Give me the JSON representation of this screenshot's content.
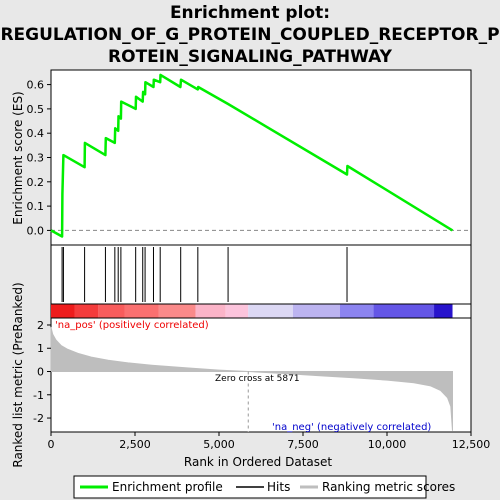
{
  "chart_data": {
    "type": "line",
    "title": "Enrichment plot: REGULATION_OF_G_PROTEIN_COUPLED_RECEPTOR_PROTEIN_SIGNALING_PATHWAY",
    "title_lines": [
      "Enrichment plot:",
      "REGULATION_OF_G_PROTEIN_COUPLED_RECEPTOR_P",
      "ROTEIN_SIGNALING_PATHWAY"
    ],
    "xlabel": "Rank in Ordered Dataset",
    "xlim": [
      0,
      12500
    ],
    "x_ticks": [
      0,
      2500,
      5000,
      7500,
      10000,
      12500
    ],
    "x_tick_labels": [
      "0",
      "2,500",
      "5,000",
      "7,500",
      "10,000",
      "12,500"
    ],
    "es_panel": {
      "ylabel": "Enrichment score (ES)",
      "ylim": [
        -0.06,
        0.66
      ],
      "y_ticks": [
        0.0,
        0.1,
        0.2,
        0.3,
        0.4,
        0.5,
        0.6
      ],
      "y_tick_labels": [
        "0.0",
        "0.1",
        "0.2",
        "0.3",
        "0.4",
        "0.5",
        "0.6"
      ],
      "series": [
        {
          "name": "Enrichment profile",
          "color": "#00ee00",
          "points": [
            [
              0,
              0.0
            ],
            [
              330,
              -0.025
            ],
            [
              340,
              0.15
            ],
            [
              370,
              0.31
            ],
            [
              1000,
              0.26
            ],
            [
              1010,
              0.36
            ],
            [
              1620,
              0.31
            ],
            [
              1630,
              0.38
            ],
            [
              1900,
              0.36
            ],
            [
              1910,
              0.42
            ],
            [
              2000,
              0.41
            ],
            [
              2010,
              0.47
            ],
            [
              2080,
              0.46
            ],
            [
              2090,
              0.53
            ],
            [
              2520,
              0.5
            ],
            [
              2530,
              0.55
            ],
            [
              2730,
              0.53
            ],
            [
              2740,
              0.57
            ],
            [
              2800,
              0.56
            ],
            [
              2810,
              0.61
            ],
            [
              3050,
              0.59
            ],
            [
              3060,
              0.62
            ],
            [
              3250,
              0.61
            ],
            [
              3260,
              0.64
            ],
            [
              3850,
              0.59
            ],
            [
              3870,
              0.62
            ],
            [
              4370,
              0.58
            ],
            [
              4380,
              0.59
            ],
            [
              5270,
              0.52
            ],
            [
              8810,
              0.23
            ],
            [
              8820,
              0.265
            ],
            [
              11950,
              0.0
            ]
          ]
        }
      ]
    },
    "hits": {
      "name": "Hits",
      "positions": [
        330,
        370,
        1000,
        1620,
        1900,
        2000,
        2080,
        2520,
        2730,
        2800,
        3050,
        3250,
        3860,
        4370,
        5270,
        8810
      ]
    },
    "rank_bar": {
      "positive_label": "'na_pos' (positively correlated)",
      "negative_label": "'na_neg' (negatively correlated)",
      "segments": [
        {
          "from": 0,
          "to": 700,
          "color": "#ee1c1c"
        },
        {
          "from": 700,
          "to": 1400,
          "color": "#f43c3c"
        },
        {
          "from": 1400,
          "to": 2200,
          "color": "#f85c5c"
        },
        {
          "from": 2200,
          "to": 3200,
          "color": "#fa7070"
        },
        {
          "from": 3200,
          "to": 4300,
          "color": "#fa8a8a"
        },
        {
          "from": 4300,
          "to": 5200,
          "color": "#fbb4c8"
        },
        {
          "from": 5200,
          "to": 5871,
          "color": "#fcc4dc"
        },
        {
          "from": 5871,
          "to": 7200,
          "color": "#dcd8f4"
        },
        {
          "from": 7200,
          "to": 8600,
          "color": "#bcb4f0"
        },
        {
          "from": 8600,
          "to": 9600,
          "color": "#8c84f0"
        },
        {
          "from": 9600,
          "to": 11400,
          "color": "#6456e6"
        },
        {
          "from": 11400,
          "to": 11950,
          "color": "#2814cc"
        }
      ]
    },
    "metric_panel": {
      "ylabel": "Ranked list metric (PreRanked)",
      "ylim": [
        -2.6,
        2.3
      ],
      "y_ticks": [
        -2,
        -1,
        0,
        1,
        2
      ],
      "y_tick_labels": [
        "-2",
        "-1",
        "0",
        "1",
        "2"
      ],
      "zero_cross_label": "Zero cross at 5871",
      "zero_cross": 5871,
      "series": [
        {
          "name": "Ranking metric scores",
          "color": "#bebebe",
          "points": [
            [
              0,
              1.9
            ],
            [
              50,
              1.6
            ],
            [
              150,
              1.35
            ],
            [
              300,
              1.12
            ],
            [
              500,
              0.95
            ],
            [
              800,
              0.78
            ],
            [
              1200,
              0.62
            ],
            [
              1700,
              0.48
            ],
            [
              2300,
              0.37
            ],
            [
              3000,
              0.27
            ],
            [
              4000,
              0.16
            ],
            [
              5000,
              0.06
            ],
            [
              5871,
              0.0
            ],
            [
              7000,
              -0.09
            ],
            [
              8000,
              -0.18
            ],
            [
              9000,
              -0.27
            ],
            [
              10000,
              -0.37
            ],
            [
              10800,
              -0.48
            ],
            [
              11300,
              -0.62
            ],
            [
              11600,
              -0.82
            ],
            [
              11800,
              -1.12
            ],
            [
              11900,
              -1.5
            ],
            [
              11950,
              -2.55
            ]
          ]
        }
      ]
    },
    "legend": {
      "placement": "bottom",
      "entries": [
        {
          "label": "Enrichment profile",
          "color": "#00ee00"
        },
        {
          "label": "Hits",
          "color": "#000000"
        },
        {
          "label": "Ranking metric scores",
          "color": "#bebebe"
        }
      ]
    }
  }
}
